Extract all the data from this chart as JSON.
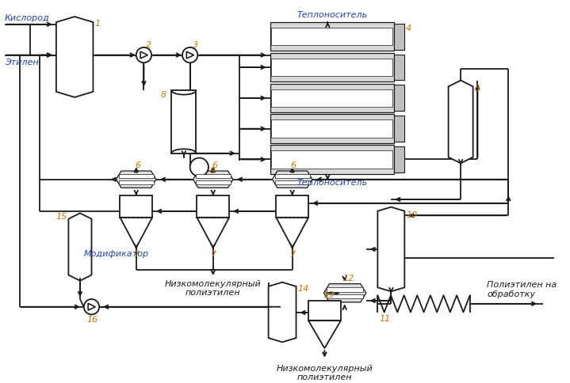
{
  "bg_color": "#ffffff",
  "line_color": "#1a1a1a",
  "number_color": "#c87800",
  "text_italic_color": "#1e40af",
  "text_color": "#1a1a1a",
  "fig_width": 7.19,
  "fig_height": 4.85,
  "labels": {
    "kislorod": "Кислород",
    "etilen": "Этилен",
    "teplonositel_top": "Теплоноситель",
    "teplonositel_bot": "Теплоноситель",
    "modifikator": "Модификатор",
    "nizkomol1": "Низкомолекулярный\nполиэтилен",
    "nizkomol2": "Низкомолекулярный\nполиэтилен",
    "polietilen": "Полиэтилен на\nобработку"
  }
}
